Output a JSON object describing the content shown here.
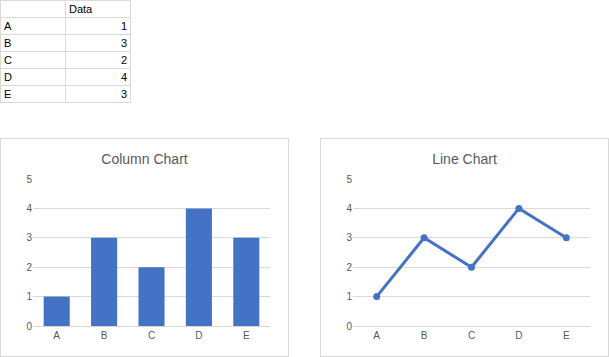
{
  "table": {
    "header": [
      "Data"
    ],
    "rows": [
      [
        "A",
        1
      ],
      [
        "B",
        3
      ],
      [
        "C",
        2
      ],
      [
        "D",
        4
      ],
      [
        "E",
        3
      ]
    ]
  },
  "chart_data": [
    {
      "type": "bar",
      "title": "Column Chart",
      "categories": [
        "A",
        "B",
        "C",
        "D",
        "E"
      ],
      "values": [
        1,
        3,
        2,
        4,
        3
      ],
      "color": "#4472c4",
      "ylim": [
        0,
        5
      ],
      "yticks": [
        0,
        1,
        2,
        3,
        4,
        5
      ],
      "grid": true
    },
    {
      "type": "line",
      "title": "Line Chart",
      "categories": [
        "A",
        "B",
        "C",
        "D",
        "E"
      ],
      "values": [
        1,
        3,
        2,
        4,
        3
      ],
      "color": "#4472c4",
      "marker": "circle",
      "ylim": [
        0,
        5
      ],
      "yticks": [
        0,
        1,
        2,
        3,
        4,
        5
      ],
      "grid": true
    }
  ]
}
